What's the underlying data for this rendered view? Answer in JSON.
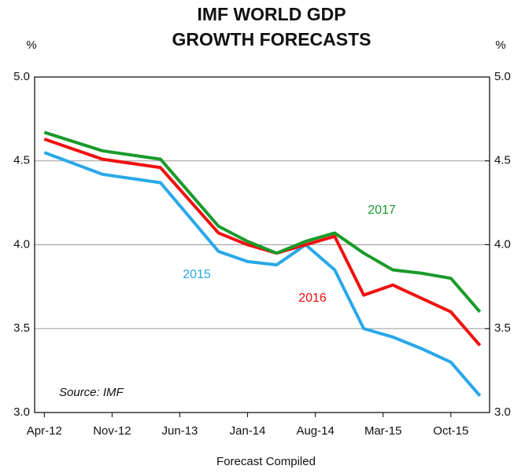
{
  "chart_data": {
    "type": "line",
    "title": [
      "IMF WORLD GDP",
      "GROWTH FORECASTS"
    ],
    "ylabel": "%",
    "y2label": "%",
    "xlabel": "Forecast Compiled",
    "annotations": [
      "Source: IMF"
    ],
    "x": [
      "2012-04",
      "2012-10",
      "2013-04",
      "2013-10",
      "2014-01",
      "2014-04",
      "2014-07",
      "2014-10",
      "2015-01",
      "2015-04",
      "2015-07",
      "2015-10",
      "2016-01"
    ],
    "xlim": [
      "2012-03",
      "2016-02"
    ],
    "xticks": [
      {
        "value": "2012-04",
        "label": "Apr-12"
      },
      {
        "value": "2012-11",
        "label": "Nov-12"
      },
      {
        "value": "2013-06",
        "label": "Jun-13"
      },
      {
        "value": "2014-01",
        "label": "Jan-14"
      },
      {
        "value": "2014-08",
        "label": "Aug-14"
      },
      {
        "value": "2015-03",
        "label": "Mar-15"
      },
      {
        "value": "2015-10",
        "label": "Oct-15"
      }
    ],
    "ylim": [
      3,
      5
    ],
    "yticks": [
      {
        "value": 3,
        "label": "3.0"
      },
      {
        "value": 3.5,
        "label": "3.5"
      },
      {
        "value": 4,
        "label": "4.0"
      },
      {
        "value": 4.5,
        "label": "4.5"
      },
      {
        "value": 5,
        "label": "5.0"
      }
    ],
    "y2lim": [
      3,
      5
    ],
    "y2ticks": [
      {
        "value": 3,
        "label": "3.0"
      },
      {
        "value": 3.5,
        "label": "3.5"
      },
      {
        "value": 4,
        "label": "4.0"
      },
      {
        "value": 4.5,
        "label": "4.5"
      },
      {
        "value": 5,
        "label": "5.0"
      }
    ],
    "grid": true,
    "series": [
      {
        "name": "2015",
        "color": "#29a8e8",
        "values": [
          4.55,
          4.42,
          4.37,
          3.96,
          3.9,
          3.88,
          4.0,
          3.85,
          3.5,
          3.45,
          3.38,
          3.3,
          3.1
        ]
      },
      {
        "name": "2016",
        "color": "#f01010",
        "values": [
          4.63,
          4.51,
          4.46,
          4.07,
          4.0,
          3.95,
          4.0,
          4.05,
          3.7,
          3.76,
          3.68,
          3.6,
          3.4
        ]
      },
      {
        "name": "2017",
        "color": "#1a9a2a",
        "values": [
          4.67,
          4.56,
          4.51,
          4.11,
          4.02,
          3.95,
          4.02,
          4.07,
          3.95,
          3.85,
          3.83,
          3.8,
          3.6
        ]
      }
    ]
  }
}
